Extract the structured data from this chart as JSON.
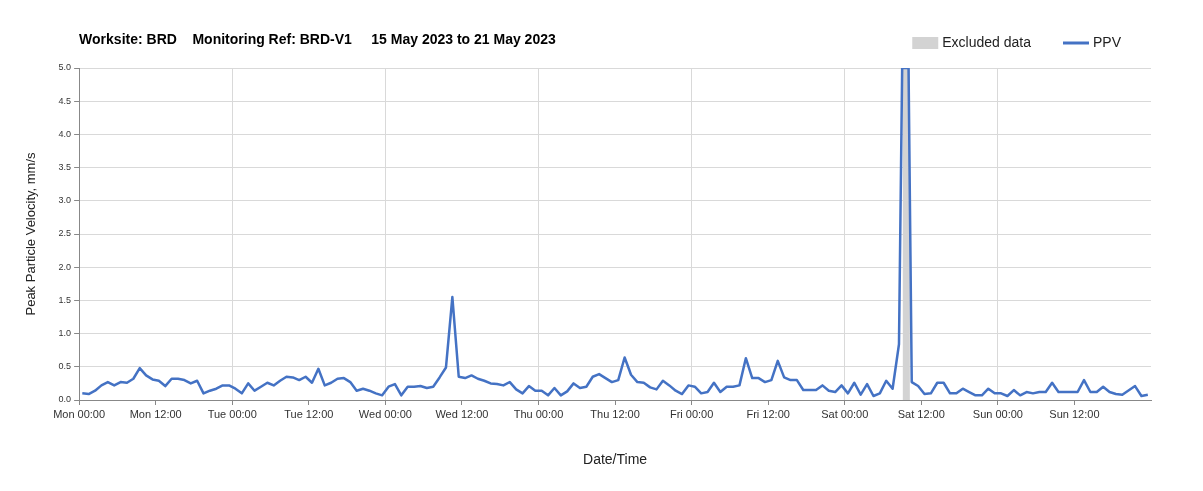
{
  "chart_data": {
    "type": "line",
    "title": "Worksite: BRD    Monitoring Ref: BRD-V1     15 May 2023 to 21 May 2023",
    "xlabel": "Date/Time",
    "ylabel": "Peak Particle Velocity, mm/s",
    "xlim": [
      "2023-05-15T00:00",
      "2023-05-22T00:00"
    ],
    "xticks": [
      {
        "value": "2023-05-15T00:00",
        "label": "Mon 00:00"
      },
      {
        "value": "2023-05-15T12:00",
        "label": "Mon 12:00"
      },
      {
        "value": "2023-05-16T00:00",
        "label": "Tue 00:00"
      },
      {
        "value": "2023-05-16T12:00",
        "label": "Tue 12:00"
      },
      {
        "value": "2023-05-17T00:00",
        "label": "Wed 00:00"
      },
      {
        "value": "2023-05-17T12:00",
        "label": "Wed 12:00"
      },
      {
        "value": "2023-05-18T00:00",
        "label": "Thu 00:00"
      },
      {
        "value": "2023-05-18T12:00",
        "label": "Thu 12:00"
      },
      {
        "value": "2023-05-19T00:00",
        "label": "Fri 00:00"
      },
      {
        "value": "2023-05-19T12:00",
        "label": "Fri 12:00"
      },
      {
        "value": "2023-05-20T00:00",
        "label": "Sat 00:00"
      },
      {
        "value": "2023-05-20T12:00",
        "label": "Sat 12:00"
      },
      {
        "value": "2023-05-21T00:00",
        "label": "Sun 00:00"
      },
      {
        "value": "2023-05-21T12:00",
        "label": "Sun 12:00"
      }
    ],
    "ylim": [
      0,
      5
    ],
    "yticks": [
      {
        "value": 0,
        "label": "0.0"
      },
      {
        "value": 0.5,
        "label": "0.5"
      },
      {
        "value": 1,
        "label": "1.0"
      },
      {
        "value": 1.5,
        "label": "1.5"
      },
      {
        "value": 2,
        "label": "2.0"
      },
      {
        "value": 2.5,
        "label": "2.5"
      },
      {
        "value": 3,
        "label": "3.0"
      },
      {
        "value": 3.5,
        "label": "3.5"
      },
      {
        "value": 4,
        "label": "4.0"
      },
      {
        "value": 4.5,
        "label": "4.5"
      },
      {
        "value": 5,
        "label": "5.0"
      }
    ],
    "grid": true,
    "legend": "top right",
    "marker": "none",
    "line_style": "solid",
    "bands": [
      {
        "axis": "x",
        "from": "2023-05-20T09:06",
        "to": "2023-05-20T10:12",
        "label": "Excluded data",
        "color": "#d3d3d3"
      }
    ],
    "series": [
      {
        "name": "PPV",
        "color": "#4472c4",
        "x": [
          "2023-05-15T00:30",
          "2023-05-15T01:30",
          "2023-05-15T02:30",
          "2023-05-15T03:30",
          "2023-05-15T04:30",
          "2023-05-15T05:30",
          "2023-05-15T06:30",
          "2023-05-15T07:30",
          "2023-05-15T08:30",
          "2023-05-15T09:30",
          "2023-05-15T10:30",
          "2023-05-15T11:30",
          "2023-05-15T12:30",
          "2023-05-15T13:30",
          "2023-05-15T14:30",
          "2023-05-15T15:30",
          "2023-05-15T16:30",
          "2023-05-15T17:30",
          "2023-05-15T18:30",
          "2023-05-15T19:30",
          "2023-05-15T20:30",
          "2023-05-15T21:30",
          "2023-05-15T22:30",
          "2023-05-15T23:30",
          "2023-05-16T00:30",
          "2023-05-16T01:30",
          "2023-05-16T02:30",
          "2023-05-16T03:30",
          "2023-05-16T04:30",
          "2023-05-16T05:30",
          "2023-05-16T06:30",
          "2023-05-16T07:30",
          "2023-05-16T08:30",
          "2023-05-16T09:30",
          "2023-05-16T10:30",
          "2023-05-16T11:30",
          "2023-05-16T12:30",
          "2023-05-16T13:30",
          "2023-05-16T14:30",
          "2023-05-16T15:30",
          "2023-05-16T16:30",
          "2023-05-16T17:30",
          "2023-05-16T18:30",
          "2023-05-16T19:30",
          "2023-05-16T20:30",
          "2023-05-16T21:30",
          "2023-05-16T22:30",
          "2023-05-16T23:30",
          "2023-05-17T00:30",
          "2023-05-17T01:30",
          "2023-05-17T02:30",
          "2023-05-17T03:30",
          "2023-05-17T04:30",
          "2023-05-17T05:30",
          "2023-05-17T06:30",
          "2023-05-17T07:30",
          "2023-05-17T08:30",
          "2023-05-17T09:30",
          "2023-05-17T10:30",
          "2023-05-17T11:30",
          "2023-05-17T12:30",
          "2023-05-17T13:30",
          "2023-05-17T14:30",
          "2023-05-17T15:30",
          "2023-05-17T16:30",
          "2023-05-17T17:30",
          "2023-05-17T18:30",
          "2023-05-17T19:30",
          "2023-05-17T20:30",
          "2023-05-17T21:30",
          "2023-05-17T22:30",
          "2023-05-17T23:30",
          "2023-05-18T00:30",
          "2023-05-18T01:30",
          "2023-05-18T02:30",
          "2023-05-18T03:30",
          "2023-05-18T04:30",
          "2023-05-18T05:30",
          "2023-05-18T06:30",
          "2023-05-18T07:30",
          "2023-05-18T08:30",
          "2023-05-18T09:30",
          "2023-05-18T10:30",
          "2023-05-18T11:30",
          "2023-05-18T12:30",
          "2023-05-18T13:30",
          "2023-05-18T14:30",
          "2023-05-18T15:30",
          "2023-05-18T16:30",
          "2023-05-18T17:30",
          "2023-05-18T18:30",
          "2023-05-18T19:30",
          "2023-05-18T20:30",
          "2023-05-18T21:30",
          "2023-05-18T22:30",
          "2023-05-18T23:30",
          "2023-05-19T00:30",
          "2023-05-19T01:30",
          "2023-05-19T02:30",
          "2023-05-19T03:30",
          "2023-05-19T04:30",
          "2023-05-19T05:30",
          "2023-05-19T06:30",
          "2023-05-19T07:30",
          "2023-05-19T08:30",
          "2023-05-19T09:30",
          "2023-05-19T10:30",
          "2023-05-19T11:30",
          "2023-05-19T12:30",
          "2023-05-19T13:30",
          "2023-05-19T14:30",
          "2023-05-19T15:30",
          "2023-05-19T16:30",
          "2023-05-19T17:30",
          "2023-05-19T18:30",
          "2023-05-19T19:30",
          "2023-05-19T20:30",
          "2023-05-19T21:30",
          "2023-05-19T22:30",
          "2023-05-19T23:30",
          "2023-05-20T00:30",
          "2023-05-20T01:30",
          "2023-05-20T02:30",
          "2023-05-20T03:30",
          "2023-05-20T04:30",
          "2023-05-20T05:30",
          "2023-05-20T06:30",
          "2023-05-20T07:30",
          "2023-05-20T08:30",
          "2023-05-20T09:00",
          "2023-05-20T10:00",
          "2023-05-20T10:30",
          "2023-05-20T11:30",
          "2023-05-20T12:30",
          "2023-05-20T13:30",
          "2023-05-20T14:30",
          "2023-05-20T15:30",
          "2023-05-20T16:30",
          "2023-05-20T17:30",
          "2023-05-20T18:30",
          "2023-05-20T19:30",
          "2023-05-20T20:30",
          "2023-05-20T21:30",
          "2023-05-20T22:30",
          "2023-05-20T23:30",
          "2023-05-21T00:30",
          "2023-05-21T01:30",
          "2023-05-21T02:30",
          "2023-05-21T03:30",
          "2023-05-21T04:30",
          "2023-05-21T05:30",
          "2023-05-21T06:30",
          "2023-05-21T07:30",
          "2023-05-21T08:30",
          "2023-05-21T09:30",
          "2023-05-21T10:30",
          "2023-05-21T11:30",
          "2023-05-21T12:30",
          "2023-05-21T13:30",
          "2023-05-21T14:30",
          "2023-05-21T15:30",
          "2023-05-21T16:30",
          "2023-05-21T17:30",
          "2023-05-21T18:30",
          "2023-05-21T19:30",
          "2023-05-21T21:30",
          "2023-05-21T22:30",
          "2023-05-21T23:30"
        ],
        "values": [
          0.1,
          0.09,
          0.14,
          0.22,
          0.27,
          0.22,
          0.27,
          0.26,
          0.32,
          0.48,
          0.37,
          0.31,
          0.29,
          0.21,
          0.32,
          0.32,
          0.3,
          0.25,
          0.29,
          0.1,
          0.14,
          0.17,
          0.22,
          0.22,
          0.17,
          0.1,
          0.25,
          0.14,
          0.2,
          0.26,
          0.22,
          0.29,
          0.35,
          0.34,
          0.3,
          0.35,
          0.26,
          0.47,
          0.22,
          0.26,
          0.32,
          0.33,
          0.27,
          0.14,
          0.17,
          0.14,
          0.1,
          0.07,
          0.2,
          0.24,
          0.07,
          0.2,
          0.2,
          0.21,
          0.18,
          0.2,
          0.34,
          0.49,
          1.55,
          0.35,
          0.33,
          0.37,
          0.32,
          0.29,
          0.25,
          0.24,
          0.22,
          0.27,
          0.16,
          0.1,
          0.21,
          0.14,
          0.14,
          0.07,
          0.18,
          0.07,
          0.13,
          0.25,
          0.18,
          0.2,
          0.35,
          0.39,
          0.33,
          0.27,
          0.3,
          0.64,
          0.38,
          0.27,
          0.26,
          0.19,
          0.16,
          0.29,
          0.22,
          0.14,
          0.09,
          0.22,
          0.2,
          0.1,
          0.12,
          0.26,
          0.12,
          0.2,
          0.2,
          0.22,
          0.63,
          0.33,
          0.33,
          0.27,
          0.3,
          0.59,
          0.34,
          0.3,
          0.3,
          0.15,
          0.15,
          0.15,
          0.22,
          0.14,
          0.12,
          0.22,
          0.1,
          0.26,
          0.08,
          0.24,
          0.06,
          0.1,
          0.29,
          0.17,
          0.84,
          5.0,
          5.0,
          0.27,
          0.21,
          0.09,
          0.1,
          0.26,
          0.26,
          0.1,
          0.1,
          0.17,
          0.12,
          0.07,
          0.07,
          0.17,
          0.1,
          0.1,
          0.06,
          0.15,
          0.07,
          0.12,
          0.1,
          0.12,
          0.12,
          0.26,
          0.12,
          0.12,
          0.12,
          0.12,
          0.3,
          0.12,
          0.12,
          0.2,
          0.12,
          0.09,
          0.08,
          0.21,
          0.06,
          0.08
        ]
      }
    ]
  }
}
